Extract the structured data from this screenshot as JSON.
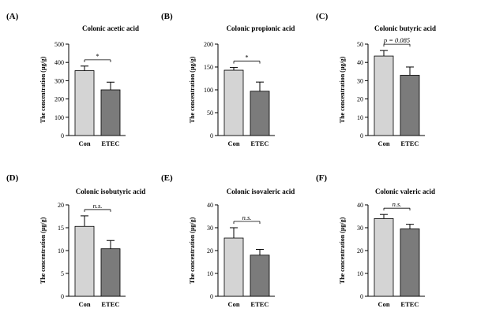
{
  "colors": {
    "con": "#d4d4d4",
    "etec": "#7b7b7b",
    "line": "#000000"
  },
  "chart_data": [
    {
      "type": "bar",
      "panel": "(A)",
      "title": "Colonic acetic acid",
      "ylabel": "The concentration (μg/g)",
      "categories": [
        "Con",
        "ETEC"
      ],
      "values": [
        355,
        250
      ],
      "errors": [
        25,
        42
      ],
      "ylim": [
        0,
        500
      ],
      "yticks": [
        0,
        100,
        200,
        300,
        400,
        500
      ],
      "significance": "*"
    },
    {
      "type": "bar",
      "panel": "(B)",
      "title": "Colonic propionic acid",
      "ylabel": "The concentration (μg/g)",
      "categories": [
        "Con",
        "ETEC"
      ],
      "values": [
        143,
        97
      ],
      "errors": [
        6,
        20
      ],
      "ylim": [
        0,
        200
      ],
      "yticks": [
        0,
        50,
        100,
        150,
        200
      ],
      "significance": "*"
    },
    {
      "type": "bar",
      "panel": "(C)",
      "title": "Colonic butyric acid",
      "ylabel": "The concentration (μg/g)",
      "categories": [
        "Con",
        "ETEC"
      ],
      "values": [
        43.5,
        33
      ],
      "errors": [
        3,
        4.5
      ],
      "ylim": [
        0,
        50
      ],
      "yticks": [
        0,
        10,
        20,
        30,
        40,
        50
      ],
      "significance": "p = 0.085"
    },
    {
      "type": "bar",
      "panel": "(D)",
      "title": "Colonic isobutyric acid",
      "ylabel": "The concentration (μg/g)",
      "categories": [
        "Con",
        "ETEC"
      ],
      "values": [
        15.3,
        10.4
      ],
      "errors": [
        2.3,
        1.8
      ],
      "ylim": [
        0,
        20
      ],
      "yticks": [
        0,
        5,
        10,
        15,
        20
      ],
      "significance": "n.s."
    },
    {
      "type": "bar",
      "panel": "(E)",
      "title": "Colonic isovaleric acid",
      "ylabel": "The concentration (μg/g)",
      "categories": [
        "Con",
        "ETEC"
      ],
      "values": [
        25.5,
        18
      ],
      "errors": [
        4.5,
        2.5
      ],
      "ylim": [
        0,
        40
      ],
      "yticks": [
        0,
        10,
        20,
        30,
        40
      ],
      "significance": "n.s."
    },
    {
      "type": "bar",
      "panel": "(F)",
      "title": "Colonic valeric acid",
      "ylabel": "The concentration (μg/g)",
      "categories": [
        "Con",
        "ETEC"
      ],
      "values": [
        34,
        29.5
      ],
      "errors": [
        1.8,
        2
      ],
      "ylim": [
        0,
        40
      ],
      "yticks": [
        0,
        10,
        20,
        30,
        40
      ],
      "significance": "n.s."
    }
  ]
}
